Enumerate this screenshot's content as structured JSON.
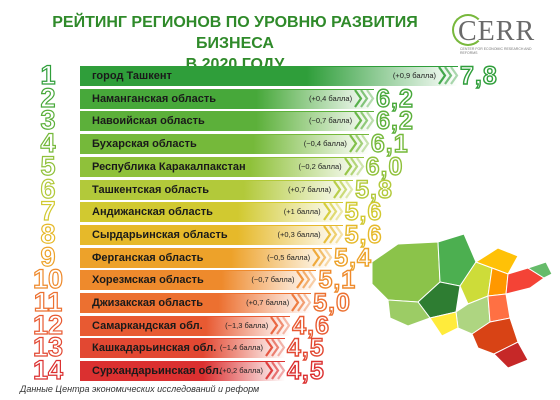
{
  "header": {
    "title_line1": "РЕЙТИНГ РЕГИОНОВ ПО УРОВНЮ РАЗВИТИЯ БИЗНЕСА",
    "title_line2": "В 2020 ГОДУ"
  },
  "logo": {
    "text": "CERR",
    "subtitle": "CENTER FOR ECONOMIC RESEARCH AND REFORMS"
  },
  "footer": {
    "source": "Данные Центра экономических исследований и реформ"
  },
  "chart_data": {
    "type": "bar",
    "title": "РЕЙТИНГ РЕГИОНОВ ПО УРОВНЮ РАЗВИТИЯ БИЗНЕСА В 2020 ГОДУ",
    "categories": [
      "город Ташкент",
      "Наманганская область",
      "Навоийская область",
      "Бухарская область",
      "Республика Каракалпакстан",
      "Ташкентская область",
      "Андижанская область",
      "Сырдарьинская область",
      "Ферганская область",
      "Хорезмская область",
      "Джизакская область",
      "Самаркандская обл.",
      "Кашкадарьинская обл.",
      "Сурхандарьинская обл."
    ],
    "ranks": [
      "1",
      "2",
      "3",
      "4",
      "5",
      "6",
      "7",
      "8",
      "9",
      "10",
      "11",
      "12",
      "13",
      "14"
    ],
    "values": [
      7.8,
      6.2,
      6.2,
      6.1,
      6.0,
      5.8,
      5.6,
      5.6,
      5.4,
      5.1,
      5.0,
      4.6,
      4.5,
      4.5
    ],
    "value_labels": [
      "7,8",
      "6,2",
      "6,2",
      "6,1",
      "6,0",
      "5,8",
      "5,6",
      "5,6",
      "5,4",
      "5,1",
      "5,0",
      "4,6",
      "4,5",
      "4,5"
    ],
    "change_labels": [
      "(+0,9 балла)",
      "(+0,4 балла)",
      "(−0,7 балла)",
      "(−0,4 балла)",
      "(−0,2 балла)",
      "(+0,7 балла)",
      "(+1 балла)",
      "(+0,3 балла)",
      "(−0,5 балла)",
      "(−0,7 балла)",
      "(+0,7 балла)",
      "(−1,3 балла)",
      "(−1,4 балла)",
      "(+0,2 балла)"
    ],
    "colors": [
      "#2f9e3a",
      "#47a83a",
      "#5cb03a",
      "#75b93a",
      "#8fc13a",
      "#b2c93a",
      "#d1c930",
      "#e6b92a",
      "#eda22a",
      "#ee8a2c",
      "#ec7030",
      "#e85a32",
      "#e24832",
      "#db3030"
    ],
    "map_colors": [
      "#8bc34a",
      "#4caf50",
      "#2e7d32",
      "#cddc39",
      "#ffc107",
      "#ff9800",
      "#f44336",
      "#66bb6a",
      "#aed581",
      "#ffeb3b",
      "#ff7043",
      "#d84315",
      "#c62828",
      "#9ccc65"
    ]
  }
}
